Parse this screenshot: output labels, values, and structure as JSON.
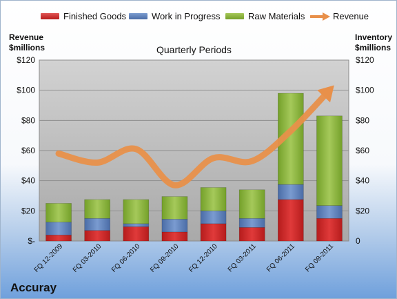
{
  "company": "Accuray",
  "chart_data": {
    "type": "bar",
    "stacked": true,
    "title": "Quarterly Periods",
    "ylabel_left": "Revenue\n$millions",
    "ylabel_right": "Inventory\n$millions",
    "ylim": [
      0,
      120
    ],
    "yticks_left": [
      "$-",
      "$20",
      "$40",
      "$60",
      "$80",
      "$100",
      "$120"
    ],
    "yticks_right": [
      "0",
      "$20",
      "$40",
      "$60",
      "$80",
      "$100",
      "$120"
    ],
    "grid": true,
    "legend_position": "top",
    "categories": [
      "FQ 12-2009",
      "FQ 03-2010",
      "FQ 06-2010",
      "FQ 09-2010",
      "FQ 12-2010",
      "FQ 03-2011",
      "FQ 06-2011",
      "FQ 09-2011"
    ],
    "series": [
      {
        "name": "Finished Goods",
        "type": "bar",
        "color": "#d42a2a",
        "values": [
          4,
          7,
          9.5,
          6,
          11.5,
          9,
          27.5,
          15
        ]
      },
      {
        "name": "Work in Progress",
        "type": "bar",
        "color": "#5b7fb8",
        "values": [
          8.5,
          8,
          2,
          8.5,
          8.5,
          6,
          10,
          8.5
        ]
      },
      {
        "name": "Raw Materials",
        "type": "bar",
        "color": "#8db33c",
        "values": [
          12.5,
          12.5,
          16,
          15,
          15.5,
          19,
          60.5,
          59.5
        ]
      },
      {
        "name": "Revenue",
        "type": "line",
        "color": "#e8904a",
        "values": [
          58,
          52,
          61,
          37,
          55,
          53,
          73,
          100
        ]
      }
    ]
  }
}
